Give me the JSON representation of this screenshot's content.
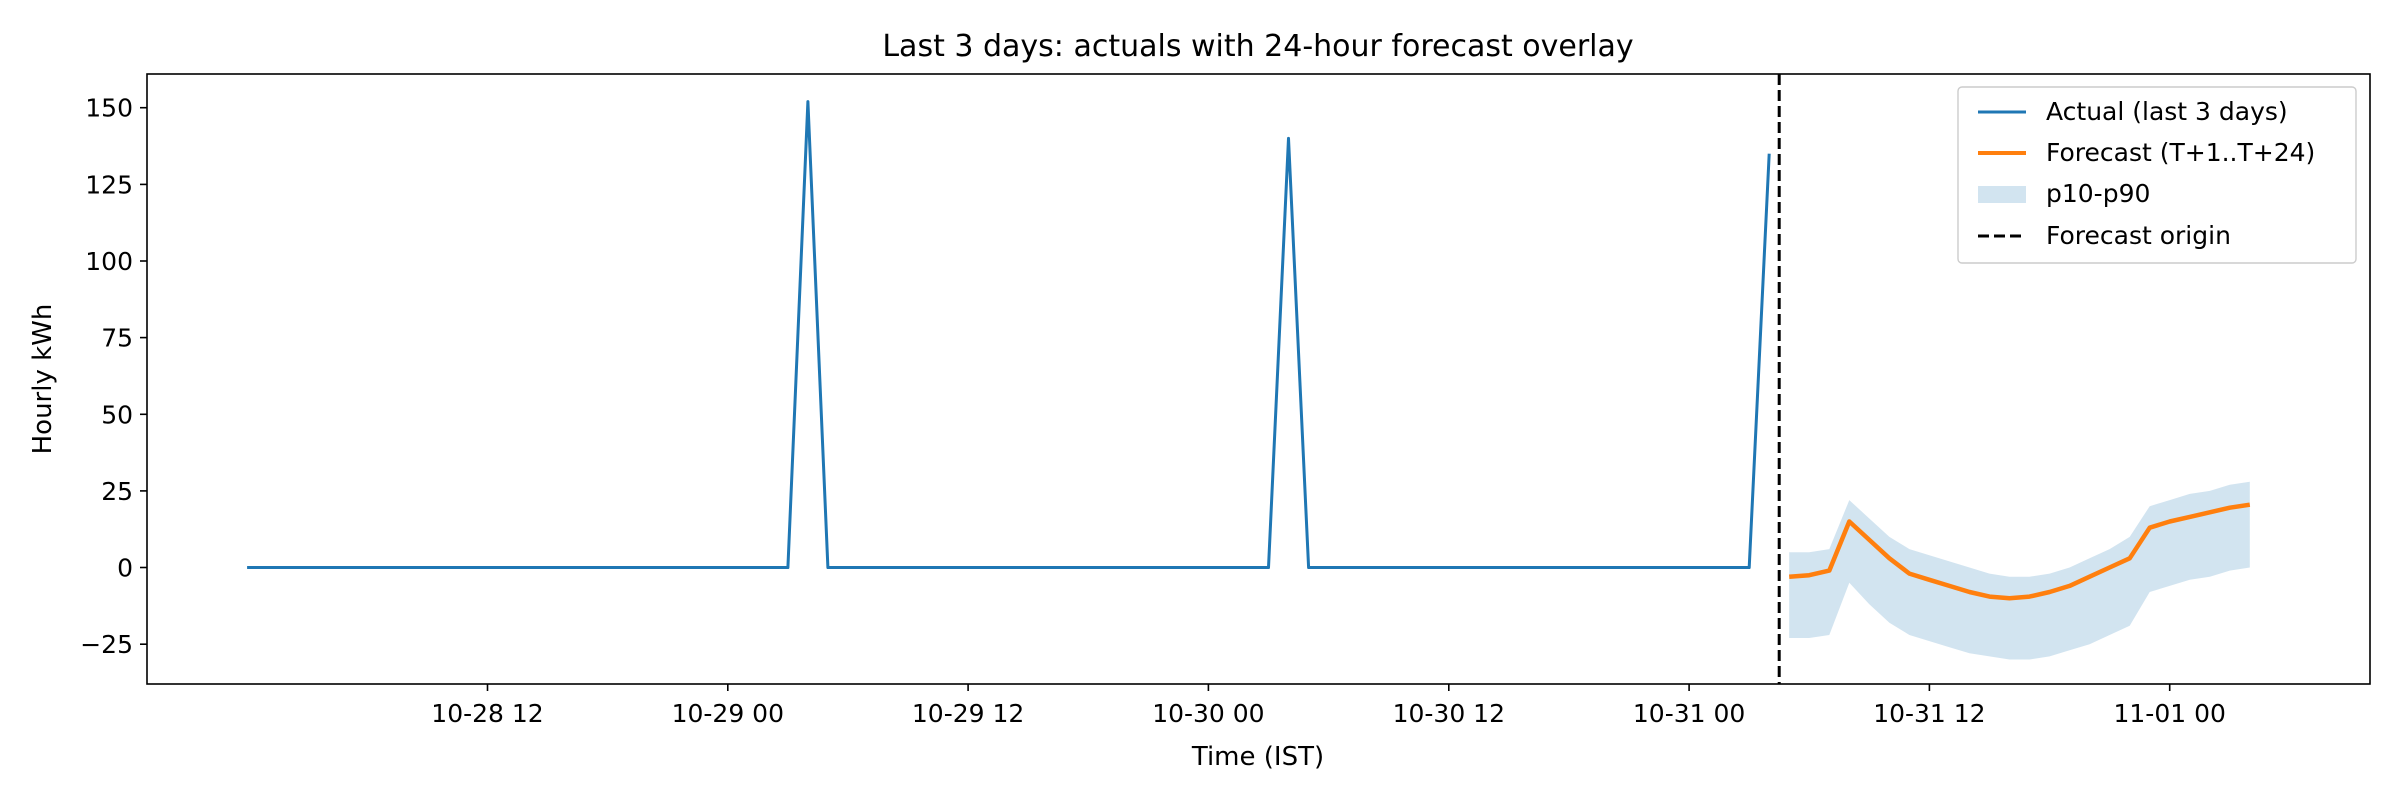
{
  "chart_data": {
    "type": "line",
    "title": "Last 3 days: actuals with 24-hour forecast overlay",
    "xlabel": "Time (IST)",
    "ylabel": "Hourly kWh",
    "x_unit": "datetime (IST)",
    "xlim": [
      "2025-10-27 19:00",
      "2025-11-01 10:00"
    ],
    "ylim": [
      -38,
      161
    ],
    "x_ticks": [
      {
        "t": "2025-10-28 12:00",
        "label": "10-28 12"
      },
      {
        "t": "2025-10-29 00:00",
        "label": "10-29 00"
      },
      {
        "t": "2025-10-29 12:00",
        "label": "10-29 12"
      },
      {
        "t": "2025-10-30 00:00",
        "label": "10-30 00"
      },
      {
        "t": "2025-10-30 12:00",
        "label": "10-30 12"
      },
      {
        "t": "2025-10-31 00:00",
        "label": "10-31 00"
      },
      {
        "t": "2025-10-31 12:00",
        "label": "10-31 12"
      },
      {
        "t": "2025-11-01 00:00",
        "label": "11-01 00"
      }
    ],
    "y_ticks": [
      {
        "v": 150,
        "label": "150"
      },
      {
        "v": 125,
        "label": "125"
      },
      {
        "v": 100,
        "label": "100"
      },
      {
        "v": 75,
        "label": "75"
      },
      {
        "v": 50,
        "label": "50"
      },
      {
        "v": 25,
        "label": "25"
      },
      {
        "v": 0,
        "label": "0"
      },
      {
        "v": -25,
        "label": "−25"
      }
    ],
    "grid": false,
    "legend_position": "top-right",
    "series": [
      {
        "name": "Actual (last 3 days)",
        "color": "#1f77b4",
        "kind": "line",
        "points": [
          [
            "2025-10-28 00:00",
            0
          ],
          [
            "2025-10-29 03:00",
            0
          ],
          [
            "2025-10-29 04:00",
            152
          ],
          [
            "2025-10-29 05:00",
            0
          ],
          [
            "2025-10-30 03:00",
            0
          ],
          [
            "2025-10-30 04:00",
            140
          ],
          [
            "2025-10-30 05:00",
            0
          ],
          [
            "2025-10-31 03:00",
            0
          ],
          [
            "2025-10-31 04:00",
            135
          ]
        ]
      },
      {
        "name": "Forecast (T+1..T+24)",
        "color": "#ff7f0e",
        "kind": "line",
        "points": [
          [
            "2025-10-31 05:00",
            -3
          ],
          [
            "2025-10-31 06:00",
            -2.5
          ],
          [
            "2025-10-31 07:00",
            -1
          ],
          [
            "2025-10-31 08:00",
            15
          ],
          [
            "2025-10-31 09:00",
            9
          ],
          [
            "2025-10-31 10:00",
            3
          ],
          [
            "2025-10-31 11:00",
            -2
          ],
          [
            "2025-10-31 12:00",
            -4
          ],
          [
            "2025-10-31 13:00",
            -6
          ],
          [
            "2025-10-31 14:00",
            -8
          ],
          [
            "2025-10-31 15:00",
            -9.5
          ],
          [
            "2025-10-31 16:00",
            -10
          ],
          [
            "2025-10-31 17:00",
            -9.5
          ],
          [
            "2025-10-31 18:00",
            -8
          ],
          [
            "2025-10-31 19:00",
            -6
          ],
          [
            "2025-10-31 20:00",
            -3
          ],
          [
            "2025-10-31 21:00",
            0
          ],
          [
            "2025-10-31 22:00",
            3
          ],
          [
            "2025-10-31 23:00",
            13
          ],
          [
            "2025-11-01 00:00",
            15
          ],
          [
            "2025-11-01 01:00",
            16.5
          ],
          [
            "2025-11-01 02:00",
            18
          ],
          [
            "2025-11-01 03:00",
            19.5
          ],
          [
            "2025-11-01 04:00",
            20.5
          ]
        ]
      },
      {
        "name": "p10-p90",
        "color": "#1f77b4",
        "opacity": 0.2,
        "kind": "band",
        "x": [
          "2025-10-31 05:00",
          "2025-10-31 06:00",
          "2025-10-31 07:00",
          "2025-10-31 08:00",
          "2025-10-31 09:00",
          "2025-10-31 10:00",
          "2025-10-31 11:00",
          "2025-10-31 12:00",
          "2025-10-31 13:00",
          "2025-10-31 14:00",
          "2025-10-31 15:00",
          "2025-10-31 16:00",
          "2025-10-31 17:00",
          "2025-10-31 18:00",
          "2025-10-31 19:00",
          "2025-10-31 20:00",
          "2025-10-31 21:00",
          "2025-10-31 22:00",
          "2025-10-31 23:00",
          "2025-11-01 00:00",
          "2025-11-01 01:00",
          "2025-11-01 02:00",
          "2025-11-01 03:00",
          "2025-11-01 04:00"
        ],
        "lower": [
          -23,
          -23,
          -22,
          -5,
          -12,
          -18,
          -22,
          -24,
          -26,
          -28,
          -29,
          -30,
          -30,
          -29,
          -27,
          -25,
          -22,
          -19,
          -8,
          -6,
          -4,
          -3,
          -1,
          0
        ],
        "upper": [
          5,
          5,
          6,
          22,
          16,
          10,
          6,
          4,
          2,
          0,
          -2,
          -3,
          -3,
          -2,
          0,
          3,
          6,
          10,
          20,
          22,
          24,
          25,
          27,
          28
        ]
      },
      {
        "name": "Forecast origin",
        "color": "#000000",
        "kind": "vline",
        "x": "2025-10-31 04:30",
        "dash": "dashed"
      }
    ]
  }
}
